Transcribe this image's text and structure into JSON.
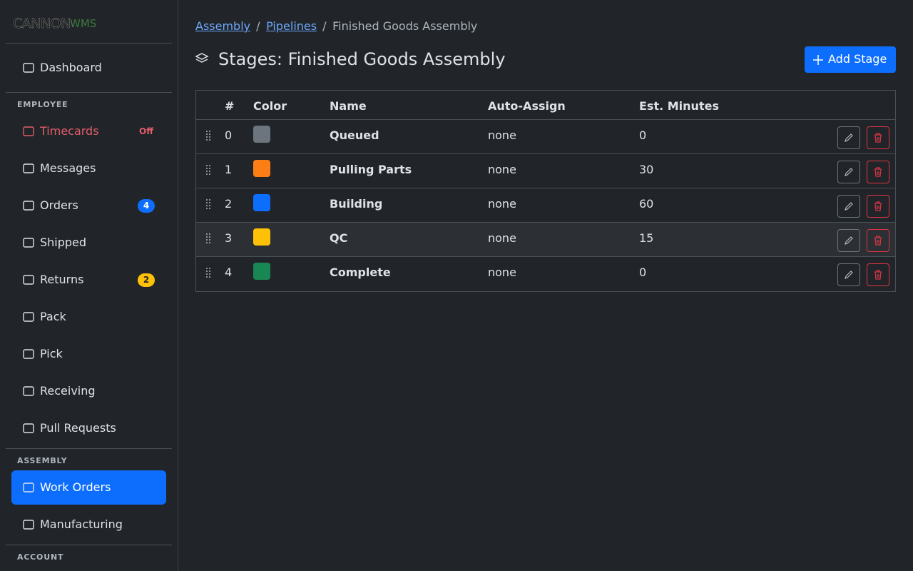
{
  "sidebar": {
    "logo": {
      "brand": "CANNON",
      "suffix": "WMS"
    },
    "top_items": [
      {
        "label": "Dashboard"
      }
    ],
    "sections": [
      {
        "heading": "EMPLOYEE",
        "items": [
          {
            "label": "Timecards",
            "badge": "Off"
          },
          {
            "label": "Messages"
          },
          {
            "label": "Orders",
            "badge": 4
          },
          {
            "label": "Shipped"
          },
          {
            "label": "Returns",
            "badge": 2
          },
          {
            "label": "Pack"
          },
          {
            "label": "Pick"
          },
          {
            "label": "Receiving"
          },
          {
            "label": "Pull Requests"
          }
        ]
      },
      {
        "heading": "ASSEMBLY",
        "items": [
          {
            "label": "Work Orders"
          },
          {
            "label": "Manufacturing"
          }
        ]
      },
      {
        "heading": "ACCOUNT",
        "items": []
      }
    ]
  },
  "breadcrumb": [
    "Assembly",
    "Pipelines",
    "Finished Goods Assembly"
  ],
  "title": "Stages: Finished Goods Assembly",
  "add_button": "Add Stage",
  "table": {
    "columns": [
      "#",
      "Color",
      "Name",
      "Auto-Assign",
      "Est. Minutes"
    ],
    "rows": [
      {
        "index": 0,
        "color": "#6c757d",
        "name": "Queued",
        "auto_assign": "none",
        "minutes": 0
      },
      {
        "index": 1,
        "color": "#fd7e14",
        "name": "Pulling Parts",
        "auto_assign": "none",
        "minutes": 30
      },
      {
        "index": 2,
        "color": "#0d6efd",
        "name": "Building",
        "auto_assign": "none",
        "minutes": 60
      },
      {
        "index": 3,
        "color": "#ffc107",
        "name": "QC",
        "auto_assign": "none",
        "minutes": 15
      },
      {
        "index": 4,
        "color": "#198754",
        "name": "Complete",
        "auto_assign": "none",
        "minutes": 0
      }
    ]
  }
}
